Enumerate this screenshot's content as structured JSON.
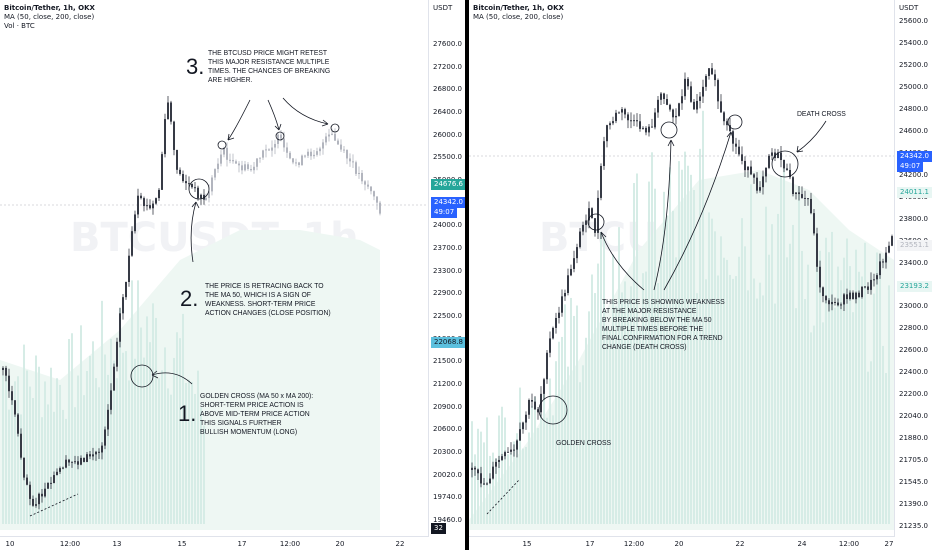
{
  "left": {
    "title_symbol": "Bitcoin/Tether, 1h, OKX",
    "indicator_ma": "MA (50, close, 200, close)",
    "indicator_vol": "Vol · BTC",
    "watermark": "BTCUSDT, 1h",
    "unit": "USDT",
    "price_ticks": [
      "27600.0",
      "27200.0",
      "26800.0",
      "26400.0",
      "26000.0",
      "25500.0",
      "25000.0",
      "24500.0",
      "24000.0",
      "23700.0",
      "23300.0",
      "22900.0",
      "22500.0",
      "21800.0",
      "21500.0",
      "21200.0",
      "20900.0",
      "20600.0",
      "20300.0",
      "20020.0",
      "19740.0",
      "19460.0"
    ],
    "price_tags": {
      "ma_fast": "24676.6",
      "last": "24342.0",
      "countdown": "49:07",
      "ma_slow": "22068.8",
      "vol": "32"
    },
    "x_labels": [
      "10",
      "12:00",
      "13",
      "15",
      "17",
      "12:00",
      "20",
      "22"
    ],
    "notes": {
      "n3_num": "3.",
      "n3_text": [
        "THE BTCUSD PRICE MIGHT RETEST",
        "THIS MAJOR RESISTANCE MULTIPLE",
        "TIMES. THE CHANCES OF BREAKING",
        "ARE HIGHER."
      ],
      "n2_num": "2.",
      "n2_text": [
        "THE PRICE IS RETRACING BACK TO",
        "THE MA 50, WHICH IS A SIGN OF",
        "WEAKNESS. SHORT-TERM PRICE",
        "ACTION CHANGES (CLOSE POSITION)"
      ],
      "n1_num": "1.",
      "n1_text": [
        "GOLDEN CROSS (MA 50 x MA 200):",
        "SHORT-TERM PRICE ACTION IS",
        "ABOVE MID-TERM PRICE ACTION",
        "THIS SIGNALS FURTHER",
        "BULLISH MOMENTUM (LONG)"
      ]
    }
  },
  "right": {
    "title_symbol": "Bitcoin/Tether, 1h, OKX",
    "indicator_ma": "MA (50, close, 200, close)",
    "watermark": "BTCUSDT, 1h",
    "unit": "USDT",
    "price_ticks": [
      "25600.0",
      "25400.0",
      "25200.0",
      "25000.0",
      "24800.0",
      "24600.0",
      "24400.0",
      "24200.0",
      "24000.0",
      "23800.0",
      "23600.0",
      "23400.0",
      "23200.0",
      "23000.0",
      "22800.0",
      "22600.0",
      "22400.0",
      "22200.0",
      "22040.0",
      "21880.0",
      "21705.0",
      "21545.0",
      "21390.0",
      "21235.0"
    ],
    "price_tags": {
      "last": "24342.0",
      "countdown": "49:07",
      "ma_a": "24011.1",
      "ma_b": "23551.1",
      "ma_c": "23193.2"
    },
    "x_labels": [
      "15",
      "17",
      "12:00",
      "20",
      "22",
      "24",
      "12:00",
      "27"
    ],
    "notes": {
      "death_cross": "DEATH CROSS",
      "golden_cross": "GOLDEN CROSS",
      "weakness": [
        "THIS PRICE IS SHOWING WEAKNESS",
        "AT THE MAJOR RESISTANCE",
        "BY BREAKING BELOW THE MA 50",
        "MULTIPLE TIMES BEFORE THE",
        "FINAL CONFIRMATION FOR A TREND",
        "CHANGE (DEATH CROSS)"
      ]
    }
  },
  "colors": {
    "tag_green": "#26a69a",
    "tag_blue": "#2962ff",
    "tag_cyan": "#5bc0de",
    "candle": "#363a45",
    "projection": "#b2b5be",
    "volume": "#d6ece6",
    "cloud": "#eef7f3"
  }
}
